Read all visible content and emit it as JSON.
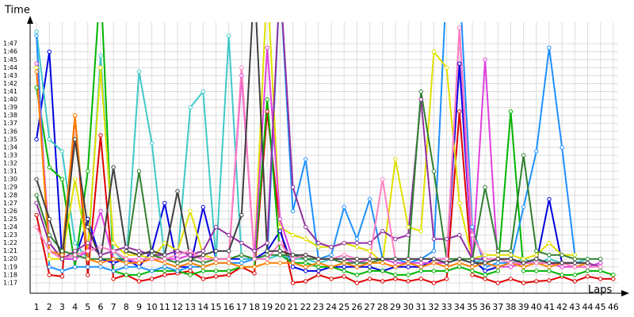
{
  "chart_data": {
    "type": "line",
    "y_axis_label": "Time",
    "x_axis_label": "Laps",
    "x": [
      1,
      2,
      3,
      4,
      5,
      6,
      7,
      8,
      9,
      10,
      11,
      12,
      13,
      14,
      15,
      16,
      17,
      18,
      19,
      20,
      21,
      22,
      23,
      24,
      25,
      26,
      27,
      28,
      29,
      30,
      31,
      32,
      33,
      34,
      35,
      36,
      37,
      38,
      39,
      40,
      41,
      42,
      43,
      44,
      45,
      46
    ],
    "xlim": [
      0.5,
      47
    ],
    "xticks": [
      1,
      2,
      3,
      4,
      5,
      6,
      7,
      8,
      9,
      10,
      11,
      12,
      13,
      14,
      15,
      16,
      17,
      18,
      19,
      20,
      21,
      22,
      23,
      24,
      25,
      26,
      27,
      28,
      29,
      30,
      31,
      32,
      33,
      34,
      35,
      36,
      37,
      38,
      39,
      40,
      41,
      42,
      43,
      44,
      45,
      46
    ],
    "ylim": [
      75.7,
      109.7
    ],
    "yticks": [
      {
        "value": 77,
        "label": "1:17"
      },
      {
        "value": 78,
        "label": "1:18"
      },
      {
        "value": 79,
        "label": "1:19"
      },
      {
        "value": 80,
        "label": "1:20"
      },
      {
        "value": 81,
        "label": "1:21"
      },
      {
        "value": 82,
        "label": "1:22"
      },
      {
        "value": 83,
        "label": "1:23"
      },
      {
        "value": 84,
        "label": "1:24"
      },
      {
        "value": 85,
        "label": "1:25"
      },
      {
        "value": 86,
        "label": "1:26"
      },
      {
        "value": 87,
        "label": "1:27"
      },
      {
        "value": 88,
        "label": "1:28"
      },
      {
        "value": 89,
        "label": "1:29"
      },
      {
        "value": 90,
        "label": "1:30"
      },
      {
        "value": 91,
        "label": "1:31"
      },
      {
        "value": 92,
        "label": "1:32"
      },
      {
        "value": 93,
        "label": "1:33"
      },
      {
        "value": 94,
        "label": "1:34"
      },
      {
        "value": 95,
        "label": "1:35"
      },
      {
        "value": 96,
        "label": "1:36"
      },
      {
        "value": 97,
        "label": "1:37"
      },
      {
        "value": 98,
        "label": "1:38"
      },
      {
        "value": 99,
        "label": "1:39"
      },
      {
        "value": 100,
        "label": "1:40"
      },
      {
        "value": 101,
        "label": "1:41"
      },
      {
        "value": 102,
        "label": "1:42"
      },
      {
        "value": 103,
        "label": "1:43"
      },
      {
        "value": 104,
        "label": "1:44"
      },
      {
        "value": 105,
        "label": "1:45"
      },
      {
        "value": 106,
        "label": "1:46"
      },
      {
        "value": 107,
        "label": "1:47"
      }
    ],
    "grid": true,
    "series": [
      {
        "color": "#e00000",
        "values": [
          85.5,
          78,
          77.8,
          98,
          78,
          95.5,
          77.5,
          78,
          77.2,
          77.5,
          78,
          78.2,
          78.5,
          77.5,
          77.8,
          78,
          79,
          78.2,
          98.5,
          84,
          77,
          77.2,
          78,
          77.5,
          77.8,
          77,
          77.5,
          77.2,
          77.5,
          77.2,
          77.5,
          77,
          77.5,
          98.5,
          78,
          77.5,
          77,
          77.5,
          77,
          77.2,
          77.3,
          77.8,
          77.2,
          77.8,
          77.5,
          77.5
        ]
      },
      {
        "color": "#0000e0",
        "values": [
          95,
          106,
          80,
          80,
          85,
          80,
          79.5,
          80,
          79,
          81,
          87,
          79,
          79,
          86.5,
          80,
          80,
          80,
          80,
          81,
          83.5,
          79,
          78.5,
          78.5,
          79,
          79,
          79,
          79,
          78.5,
          79,
          79,
          79,
          80,
          80,
          104.5,
          80,
          78.5,
          79,
          79.5,
          79.5,
          79.5,
          87.5,
          79.5,
          79,
          79,
          79.5,
          null
        ]
      },
      {
        "color": "#00b400",
        "values": [
          101.5,
          91.5,
          90,
          79,
          91,
          115,
          78.5,
          78,
          78,
          78.5,
          78.5,
          78.5,
          78,
          78.5,
          78.5,
          78.5,
          79,
          79,
          100,
          80.5,
          79.5,
          79.5,
          79,
          79,
          78.5,
          78,
          78.5,
          78.5,
          78,
          78,
          78.5,
          78.5,
          78.5,
          79,
          78.5,
          78,
          78.5,
          98.5,
          78.5,
          78.5,
          78.5,
          78,
          78,
          78.5,
          78.5,
          78
        ]
      },
      {
        "color": "#40c8c8",
        "values": [
          108.5,
          95,
          93.5,
          82,
          80,
          105.5,
          81,
          79.5,
          103.5,
          94.5,
          80,
          80,
          99,
          101,
          80,
          108,
          80,
          80,
          80,
          80.5,
          80,
          80,
          79.5,
          80,
          80,
          79.5,
          80,
          80,
          79.5,
          79.5,
          80,
          80,
          79.5,
          80,
          79.5,
          80,
          80,
          79.5,
          80,
          79.5,
          80,
          79.5,
          79.5,
          80,
          null,
          null
        ]
      },
      {
        "color": "#1e90ff",
        "values": [
          108,
          79,
          78.5,
          79,
          79,
          79,
          78.5,
          79,
          79,
          78.5,
          79,
          78.5,
          79,
          79,
          79.5,
          79.5,
          79.5,
          80,
          80,
          115,
          86,
          92.5,
          80,
          80.5,
          86.5,
          82.5,
          87.5,
          80,
          80,
          79.5,
          80,
          81,
          115,
          115,
          84,
          79,
          79.5,
          79.5,
          86.5,
          93.5,
          106.5,
          94,
          80.5,
          null,
          null,
          null
        ]
      },
      {
        "color": "#e0e000",
        "values": [
          104,
          80,
          80,
          90,
          81,
          104,
          82,
          80.5,
          80.5,
          80,
          82,
          81,
          86,
          80.5,
          80,
          80,
          80.5,
          80,
          115,
          84,
          83,
          82.5,
          81.5,
          81.5,
          82,
          81.5,
          81,
          79.5,
          92.5,
          84,
          83.5,
          106,
          104,
          87,
          80,
          80.5,
          80.5,
          80.5,
          80,
          80.5,
          82,
          80.5,
          80.5,
          null,
          null,
          null
        ]
      },
      {
        "color": "#e040e0",
        "values": [
          104.5,
          82,
          80,
          80,
          81,
          86,
          80,
          80,
          79.5,
          80,
          80,
          80,
          80.5,
          80,
          80,
          80,
          103,
          80,
          106.5,
          85,
          80,
          80.5,
          80,
          80,
          80,
          79.5,
          80,
          80,
          79.5,
          79.5,
          79.5,
          79.5,
          79.5,
          109,
          79,
          105,
          79,
          79,
          79.5,
          79.5,
          79.5,
          79,
          79,
          79,
          79.5,
          null
        ]
      },
      {
        "color": "#9030a0",
        "values": [
          87,
          82,
          80,
          81,
          82,
          80.5,
          81,
          81.5,
          81,
          80.5,
          80.5,
          81,
          80.5,
          81,
          84,
          83,
          82,
          81,
          82,
          115,
          89,
          84,
          82,
          81.5,
          82,
          82,
          82,
          83.5,
          82.5,
          83,
          100,
          82.5,
          82.5,
          83,
          80,
          80,
          80,
          80,
          79.5,
          79.5,
          79.5,
          79.5,
          79.5,
          79.5,
          79,
          null
        ]
      },
      {
        "color": "#308030",
        "values": [
          88,
          83,
          81,
          80.5,
          80,
          80,
          80,
          80,
          91,
          80.5,
          80,
          79.5,
          80,
          79.5,
          80,
          80,
          80.5,
          80,
          80.5,
          80.5,
          80.5,
          80,
          80,
          80,
          79.5,
          79.5,
          79.5,
          80,
          80,
          80,
          101,
          91,
          80,
          80,
          80,
          89,
          81,
          81,
          93,
          81,
          80.5,
          80.5,
          80,
          80,
          80,
          null
        ]
      },
      {
        "color": "#ff8000",
        "values": [
          103.5,
          81,
          80.5,
          98,
          80,
          79.5,
          80,
          79.5,
          79.5,
          80,
          79.5,
          79,
          79.5,
          79,
          79.5,
          79.5,
          79,
          79,
          79.5,
          79.5,
          79.5,
          79,
          79.5,
          79,
          79.5,
          79,
          79.5,
          79.5,
          79,
          79.5,
          79,
          79.5,
          79,
          79.5,
          79,
          79.5,
          79,
          79.5,
          79,
          79.5,
          79,
          79.5,
          79,
          79.5,
          null,
          null
        ]
      },
      {
        "color": "#ff80c0",
        "values": [
          84,
          81,
          80,
          80.5,
          81,
          81.5,
          81,
          80,
          80,
          80,
          80,
          80.5,
          81,
          80,
          80,
          80,
          104,
          80,
          80,
          82,
          80,
          80.5,
          80,
          80,
          80.5,
          80,
          80,
          90,
          80,
          80,
          80,
          80,
          80,
          109,
          83,
          80,
          80,
          79.5,
          79.5,
          79.5,
          79.5,
          79.5,
          79,
          79,
          79,
          null
        ]
      },
      {
        "color": "#404040",
        "values": [
          90,
          85,
          80,
          95,
          84,
          80,
          91.5,
          81,
          80.5,
          81,
          80.5,
          88.5,
          80,
          80.5,
          81,
          81,
          85.5,
          115,
          81,
          81,
          80.5,
          80.5,
          80,
          80,
          80,
          80,
          80,
          80,
          80,
          80,
          80,
          80,
          79.5,
          80,
          79.5,
          79.5,
          80,
          80,
          79.5,
          80,
          79.5,
          79.5,
          79.5,
          79.5,
          null,
          null
        ]
      }
    ]
  }
}
